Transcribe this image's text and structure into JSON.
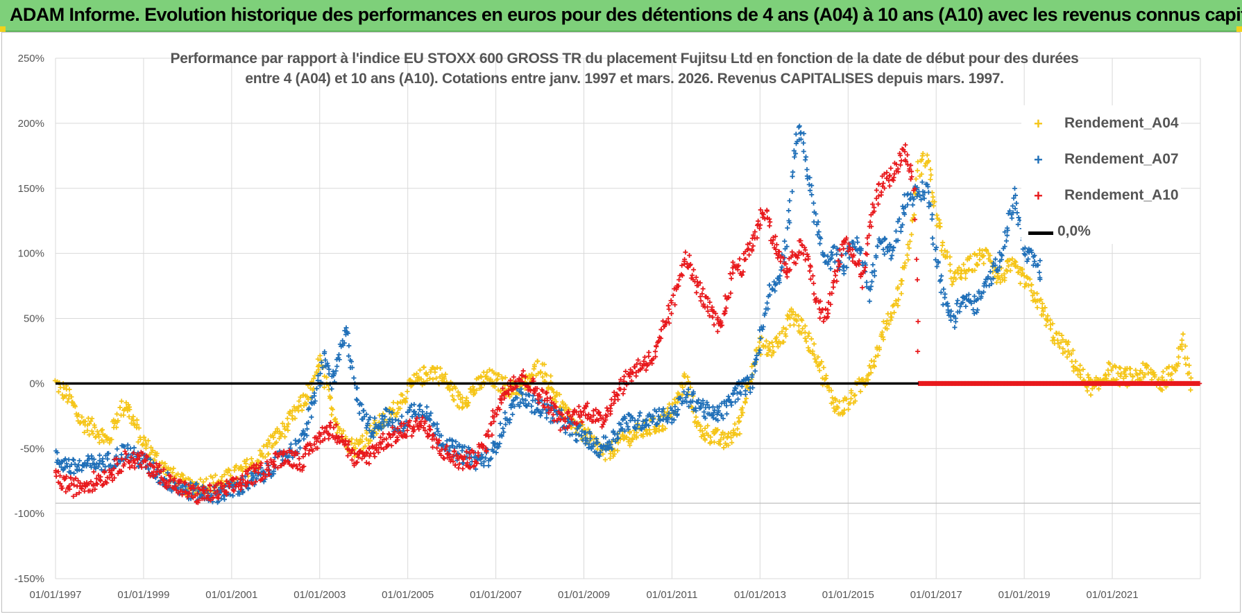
{
  "header": {
    "title": "ADAM Informe. Evolution historique des performances en euros pour des détentions de 4 ans (A04) à 10 ans (A10) avec les revenus connus capitalisés"
  },
  "chart_data": {
    "type": "scatter",
    "title_line1": "Performance par rapport à l'indice EU STOXX 600 GROSS TR  du placement Fujitsu Ltd en fonction de la date de début pour des durées",
    "title_line2": "entre 4 (A04) et 10 ans (A10).  Cotations entre janv. 1997 et mars. 2026.  Revenus CAPITALISES depuis mars. 1997.",
    "xlabel": "",
    "ylabel": "",
    "x_tick_labels": [
      "01/01/1997",
      "01/01/1999",
      "01/01/2001",
      "01/01/2003",
      "01/01/2005",
      "01/01/2007",
      "01/01/2009",
      "01/01/2011",
      "01/01/2013",
      "01/01/2015",
      "01/01/2017",
      "01/01/2019",
      "01/01/2021"
    ],
    "x_range": [
      1997.0,
      2023.0
    ],
    "y_tick_labels": [
      "250%",
      "200%",
      "150%",
      "100%",
      "50%",
      "0%",
      "-50%",
      "-100%",
      "-150%"
    ],
    "ylim": [
      -150,
      250
    ],
    "grid": true,
    "legend_position": "top-right",
    "series": [
      {
        "name": "Rendement_A04",
        "color": "#f5c518",
        "marker": "+",
        "points": [
          [
            1997.0,
            0
          ],
          [
            1997.3,
            -10
          ],
          [
            1997.6,
            -30
          ],
          [
            1997.9,
            -35
          ],
          [
            1998.2,
            -45
          ],
          [
            1998.4,
            -25
          ],
          [
            1998.6,
            -15
          ],
          [
            1998.9,
            -40
          ],
          [
            1999.2,
            -55
          ],
          [
            1999.6,
            -70
          ],
          [
            2000.0,
            -80
          ],
          [
            2000.4,
            -78
          ],
          [
            2000.8,
            -75
          ],
          [
            2001.2,
            -68
          ],
          [
            2001.6,
            -60
          ],
          [
            2001.9,
            -45
          ],
          [
            2002.2,
            -35
          ],
          [
            2002.5,
            -20
          ],
          [
            2002.9,
            0
          ],
          [
            2003.0,
            20
          ],
          [
            2003.2,
            -10
          ],
          [
            2003.5,
            -40
          ],
          [
            2003.8,
            -50
          ],
          [
            2004.1,
            -40
          ],
          [
            2004.4,
            -30
          ],
          [
            2004.7,
            -20
          ],
          [
            2005.0,
            -5
          ],
          [
            2005.3,
            5
          ],
          [
            2005.6,
            10
          ],
          [
            2005.9,
            0
          ],
          [
            2006.2,
            -15
          ],
          [
            2006.5,
            -5
          ],
          [
            2006.8,
            5
          ],
          [
            2007.1,
            0
          ],
          [
            2007.4,
            -5
          ],
          [
            2007.7,
            0
          ],
          [
            2008.0,
            15
          ],
          [
            2008.3,
            -5
          ],
          [
            2008.6,
            -25
          ],
          [
            2008.9,
            -35
          ],
          [
            2009.2,
            -45
          ],
          [
            2009.5,
            -55
          ],
          [
            2009.8,
            -45
          ],
          [
            2010.1,
            -40
          ],
          [
            2010.4,
            -35
          ],
          [
            2010.8,
            -30
          ],
          [
            2011.1,
            -15
          ],
          [
            2011.3,
            5
          ],
          [
            2011.6,
            -35
          ],
          [
            2011.9,
            -40
          ],
          [
            2012.2,
            -45
          ],
          [
            2012.5,
            -35
          ],
          [
            2012.8,
            10
          ],
          [
            2013.0,
            30
          ],
          [
            2013.2,
            25
          ],
          [
            2013.5,
            35
          ],
          [
            2013.7,
            55
          ],
          [
            2014.0,
            40
          ],
          [
            2014.3,
            20
          ],
          [
            2014.6,
            -10
          ],
          [
            2014.8,
            -20
          ],
          [
            2015.0,
            -15
          ],
          [
            2015.2,
            -5
          ],
          [
            2015.4,
            5
          ],
          [
            2015.6,
            20
          ],
          [
            2015.8,
            40
          ],
          [
            2016.0,
            55
          ],
          [
            2016.2,
            75
          ],
          [
            2016.4,
            110
          ],
          [
            2016.6,
            165
          ],
          [
            2016.8,
            175
          ],
          [
            2017.0,
            130
          ],
          [
            2017.2,
            100
          ],
          [
            2017.4,
            80
          ],
          [
            2017.6,
            85
          ],
          [
            2017.9,
            95
          ],
          [
            2018.2,
            100
          ],
          [
            2018.4,
            80
          ],
          [
            2018.7,
            90
          ],
          [
            2019.0,
            80
          ],
          [
            2019.2,
            70
          ],
          [
            2019.5,
            50
          ],
          [
            2019.7,
            35
          ],
          [
            2020.0,
            25
          ],
          [
            2020.3,
            5
          ],
          [
            2020.6,
            -5
          ],
          [
            2020.9,
            10
          ],
          [
            2021.2,
            5
          ],
          [
            2021.5,
            5
          ],
          [
            2021.8,
            10
          ],
          [
            2022.1,
            0
          ],
          [
            2022.4,
            10
          ],
          [
            2022.6,
            35
          ],
          [
            2022.8,
            -5
          ]
        ]
      },
      {
        "name": "Rendement_A07",
        "color": "#1f6fb8",
        "marker": "+",
        "points": [
          [
            1997.0,
            -58
          ],
          [
            1997.4,
            -65
          ],
          [
            1997.8,
            -62
          ],
          [
            1998.2,
            -60
          ],
          [
            1998.6,
            -52
          ],
          [
            1999.0,
            -60
          ],
          [
            1999.4,
            -72
          ],
          [
            1999.8,
            -80
          ],
          [
            2000.2,
            -84
          ],
          [
            2000.6,
            -85
          ],
          [
            2001.0,
            -82
          ],
          [
            2001.4,
            -76
          ],
          [
            2001.8,
            -68
          ],
          [
            2002.2,
            -55
          ],
          [
            2002.6,
            -45
          ],
          [
            2002.9,
            -10
          ],
          [
            2003.1,
            20
          ],
          [
            2003.3,
            0
          ],
          [
            2003.6,
            40
          ],
          [
            2003.9,
            -20
          ],
          [
            2004.2,
            -35
          ],
          [
            2004.5,
            -25
          ],
          [
            2004.8,
            -35
          ],
          [
            2005.1,
            -20
          ],
          [
            2005.4,
            -20
          ],
          [
            2005.7,
            -40
          ],
          [
            2006.0,
            -50
          ],
          [
            2006.3,
            -55
          ],
          [
            2006.6,
            -60
          ],
          [
            2006.9,
            -55
          ],
          [
            2007.2,
            -30
          ],
          [
            2007.5,
            -10
          ],
          [
            2007.8,
            -15
          ],
          [
            2008.1,
            -20
          ],
          [
            2008.4,
            -25
          ],
          [
            2008.7,
            -35
          ],
          [
            2009.0,
            -40
          ],
          [
            2009.3,
            -50
          ],
          [
            2009.6,
            -45
          ],
          [
            2009.9,
            -30
          ],
          [
            2010.2,
            -30
          ],
          [
            2010.6,
            -25
          ],
          [
            2011.0,
            -25
          ],
          [
            2011.3,
            -10
          ],
          [
            2011.6,
            -15
          ],
          [
            2011.9,
            -25
          ],
          [
            2012.2,
            -20
          ],
          [
            2012.5,
            -5
          ],
          [
            2012.8,
            0
          ],
          [
            2013.0,
            35
          ],
          [
            2013.2,
            70
          ],
          [
            2013.4,
            80
          ],
          [
            2013.6,
            110
          ],
          [
            2013.8,
            180
          ],
          [
            2013.9,
            200
          ],
          [
            2014.1,
            160
          ],
          [
            2014.3,
            120
          ],
          [
            2014.5,
            90
          ],
          [
            2014.7,
            100
          ],
          [
            2014.9,
            90
          ],
          [
            2015.1,
            110
          ],
          [
            2015.3,
            100
          ],
          [
            2015.5,
            70
          ],
          [
            2015.7,
            110
          ],
          [
            2016.0,
            100
          ],
          [
            2016.3,
            140
          ],
          [
            2016.5,
            145
          ],
          [
            2016.8,
            150
          ],
          [
            2017.0,
            100
          ],
          [
            2017.2,
            60
          ],
          [
            2017.4,
            50
          ],
          [
            2017.6,
            65
          ],
          [
            2017.9,
            60
          ],
          [
            2018.2,
            80
          ],
          [
            2018.5,
            100
          ],
          [
            2018.8,
            145
          ],
          [
            2019.0,
            100
          ],
          [
            2019.2,
            95
          ],
          [
            2019.4,
            85
          ]
        ]
      },
      {
        "name": "Rendement_A10",
        "color": "#e8191c",
        "marker": "+",
        "points": [
          [
            1997.0,
            -73
          ],
          [
            1997.4,
            -80
          ],
          [
            1997.8,
            -76
          ],
          [
            1998.2,
            -70
          ],
          [
            1998.6,
            -58
          ],
          [
            1999.0,
            -60
          ],
          [
            1999.4,
            -70
          ],
          [
            1999.8,
            -80
          ],
          [
            2000.2,
            -86
          ],
          [
            2000.6,
            -84
          ],
          [
            2001.0,
            -80
          ],
          [
            2001.4,
            -72
          ],
          [
            2001.8,
            -65
          ],
          [
            2002.2,
            -55
          ],
          [
            2002.6,
            -60
          ],
          [
            2002.9,
            -45
          ],
          [
            2003.2,
            -35
          ],
          [
            2003.5,
            -40
          ],
          [
            2003.8,
            -60
          ],
          [
            2004.1,
            -55
          ],
          [
            2004.4,
            -45
          ],
          [
            2004.7,
            -40
          ],
          [
            2005.0,
            -35
          ],
          [
            2005.3,
            -30
          ],
          [
            2005.6,
            -45
          ],
          [
            2005.9,
            -55
          ],
          [
            2006.2,
            -60
          ],
          [
            2006.5,
            -58
          ],
          [
            2006.8,
            -45
          ],
          [
            2007.0,
            -20
          ],
          [
            2007.3,
            0
          ],
          [
            2007.6,
            5
          ],
          [
            2007.9,
            -5
          ],
          [
            2008.2,
            -15
          ],
          [
            2008.5,
            -30
          ],
          [
            2008.8,
            -25
          ],
          [
            2009.1,
            -20
          ],
          [
            2009.4,
            -30
          ],
          [
            2009.7,
            -10
          ],
          [
            2010.0,
            5
          ],
          [
            2010.3,
            15
          ],
          [
            2010.6,
            20
          ],
          [
            2010.9,
            50
          ],
          [
            2011.1,
            70
          ],
          [
            2011.3,
            100
          ],
          [
            2011.5,
            80
          ],
          [
            2011.8,
            60
          ],
          [
            2012.1,
            40
          ],
          [
            2012.4,
            90
          ],
          [
            2012.6,
            90
          ],
          [
            2012.9,
            115
          ],
          [
            2013.1,
            135
          ],
          [
            2013.3,
            110
          ],
          [
            2013.6,
            85
          ],
          [
            2013.9,
            105
          ],
          [
            2014.1,
            95
          ],
          [
            2014.3,
            60
          ],
          [
            2014.5,
            50
          ],
          [
            2014.7,
            80
          ],
          [
            2014.9,
            110
          ],
          [
            2015.1,
            100
          ],
          [
            2015.3,
            80
          ],
          [
            2015.5,
            120
          ],
          [
            2015.7,
            150
          ],
          [
            2016.0,
            160
          ],
          [
            2016.3,
            180
          ],
          [
            2016.5,
            150
          ],
          [
            2016.6,
            0
          ],
          [
            2023.0,
            0
          ]
        ]
      },
      {
        "name": "0,0%",
        "color": "#000000",
        "marker": "line",
        "points": [
          [
            1997.0,
            0
          ],
          [
            2023.0,
            0
          ]
        ]
      }
    ]
  }
}
